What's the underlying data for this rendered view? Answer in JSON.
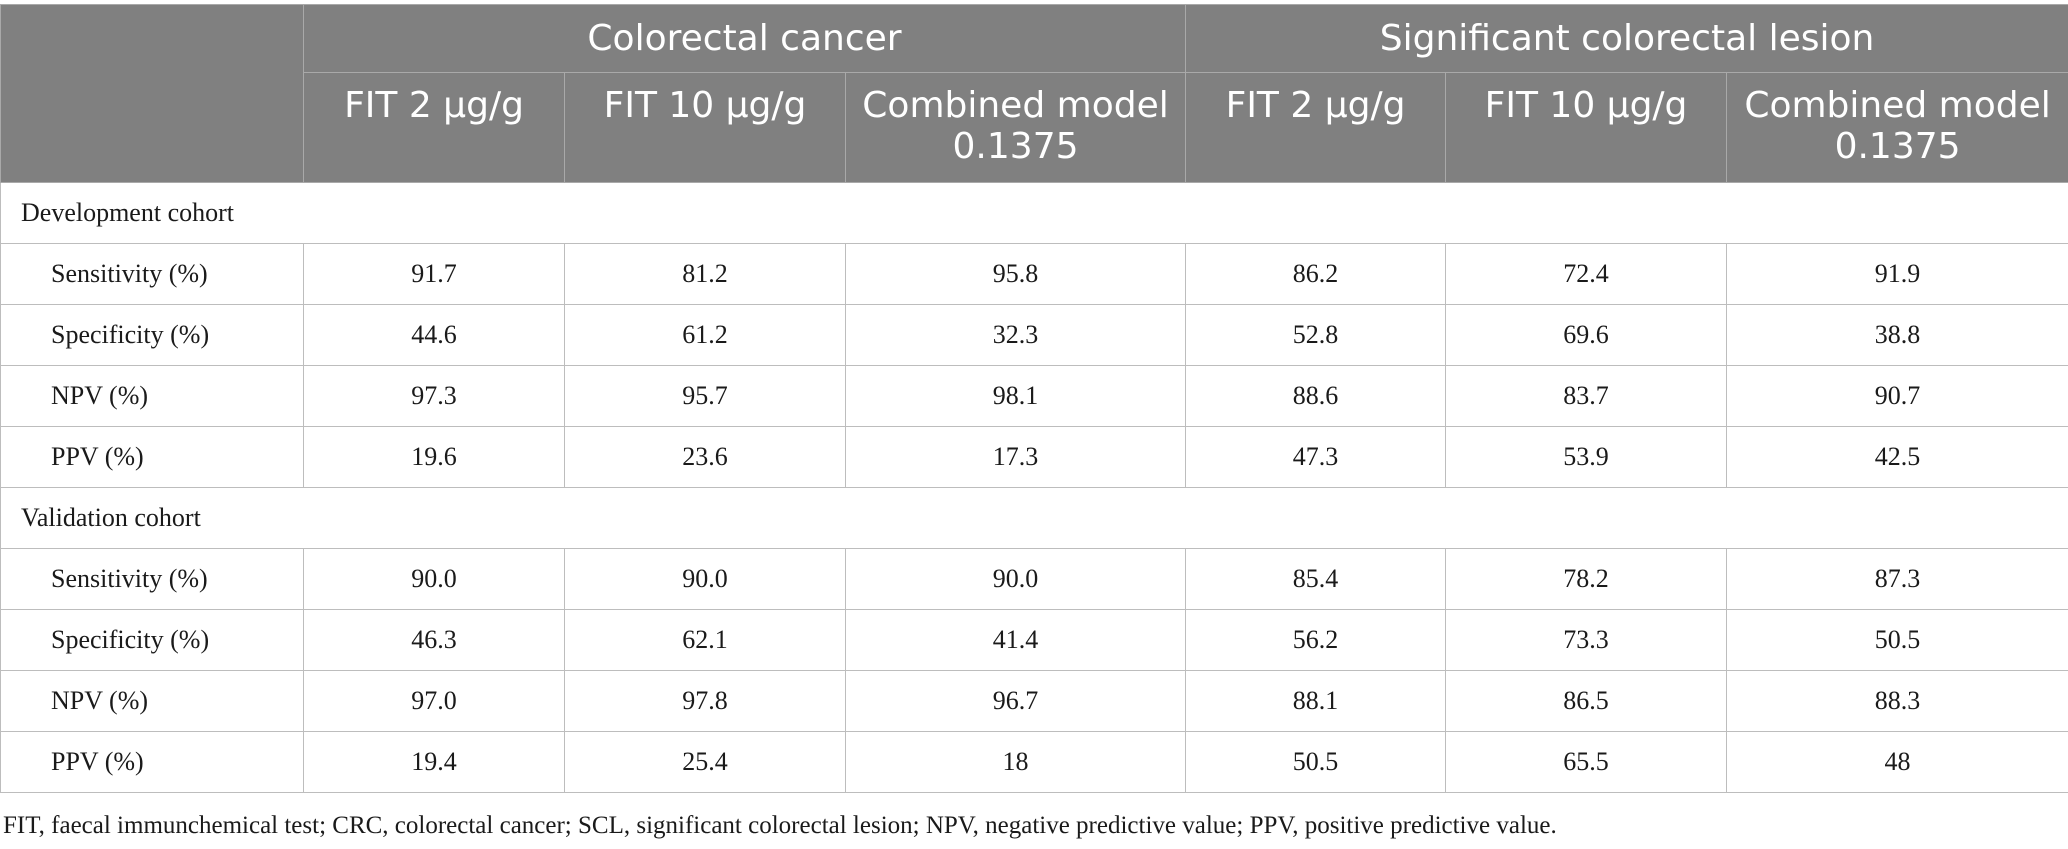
{
  "header": {
    "groups": [
      "Colorectal cancer",
      "Significant colorectal lesion"
    ],
    "subcolumns": [
      "FIT 2 μg/g",
      "FIT 10 μg/g",
      "Combined model 0.1375",
      "FIT 2 μg/g",
      "FIT 10 μg/g",
      "Combined model 0.1375"
    ]
  },
  "sections": [
    {
      "title": "Development cohort",
      "rows": [
        {
          "label": "Sensitivity (%)",
          "values": [
            "91.7",
            "81.2",
            "95.8",
            "86.2",
            "72.4",
            "91.9"
          ]
        },
        {
          "label": "Specificity (%)",
          "values": [
            "44.6",
            "61.2",
            "32.3",
            "52.8",
            "69.6",
            "38.8"
          ]
        },
        {
          "label": "NPV (%)",
          "values": [
            "97.3",
            "95.7",
            "98.1",
            "88.6",
            "83.7",
            "90.7"
          ]
        },
        {
          "label": "PPV (%)",
          "values": [
            "19.6",
            "23.6",
            "17.3",
            "47.3",
            "53.9",
            "42.5"
          ]
        }
      ]
    },
    {
      "title": "Validation cohort",
      "rows": [
        {
          "label": "Sensitivity (%)",
          "values": [
            "90.0",
            "90.0",
            "90.0",
            "85.4",
            "78.2",
            "87.3"
          ]
        },
        {
          "label": "Specificity (%)",
          "values": [
            "46.3",
            "62.1",
            "41.4",
            "56.2",
            "73.3",
            "50.5"
          ]
        },
        {
          "label": "NPV (%)",
          "values": [
            "97.0",
            "97.8",
            "96.7",
            "88.1",
            "86.5",
            "88.3"
          ]
        },
        {
          "label": "PPV (%)",
          "values": [
            "19.4",
            "25.4",
            "18",
            "50.5",
            "65.5",
            "48"
          ]
        }
      ]
    }
  ],
  "footnote": "FIT, faecal immunchemical test; CRC, colorectal cancer; SCL, significant colorectal lesion; NPV, negative predictive value; PPV, positive predictive value."
}
